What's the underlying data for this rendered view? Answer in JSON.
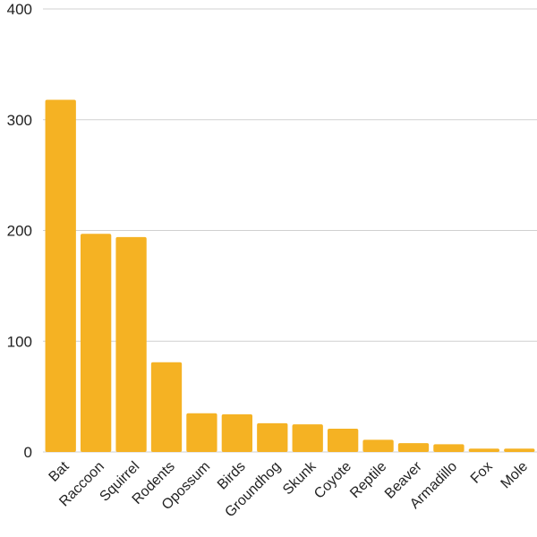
{
  "chart_data": {
    "type": "bar",
    "categories": [
      "Bat",
      "Raccoon",
      "Squirrel",
      "Rodents",
      "Opossum",
      "Birds",
      "Groundhog",
      "Skunk",
      "Coyote",
      "Reptile",
      "Beaver",
      "Armadillo",
      "Fox",
      "Mole"
    ],
    "values": [
      318,
      197,
      194,
      81,
      35,
      34,
      26,
      25,
      21,
      11,
      8,
      7,
      3,
      3
    ],
    "title": "",
    "xlabel": "",
    "ylabel": "",
    "ylim": [
      0,
      400
    ],
    "yticks": [
      "0",
      "100",
      "200",
      "300",
      "400"
    ],
    "bar_color": "#F5B223",
    "grid": true,
    "legend": "none"
  }
}
